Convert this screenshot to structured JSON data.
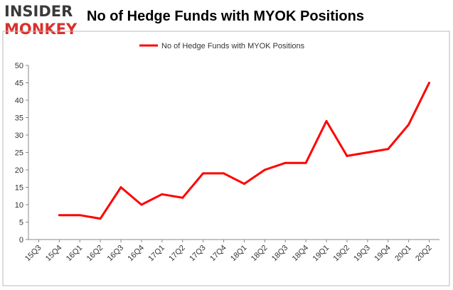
{
  "logo": {
    "line1": "INSIDER",
    "line2": "MONKEY"
  },
  "colors": {
    "series": "#ff0000",
    "logo_dark": "#3a3a3a",
    "logo_red": "#d9302c",
    "frame": "#b9b9b9"
  },
  "chart_data": {
    "type": "line",
    "title": "No of Hedge Funds with MYOK Positions",
    "xlabel": "",
    "ylabel": "",
    "ylim": [
      0,
      50
    ],
    "yticks": [
      0,
      5,
      10,
      15,
      20,
      25,
      30,
      35,
      40,
      45,
      50
    ],
    "grid": false,
    "legend_position": "top-center",
    "categories": [
      "15Q3",
      "15Q4",
      "16Q1",
      "16Q2",
      "16Q3",
      "16Q4",
      "17Q1",
      "17Q2",
      "17Q3",
      "17Q4",
      "18Q1",
      "18Q2",
      "18Q3",
      "18Q4",
      "19Q1",
      "19Q2",
      "19Q3",
      "19Q4",
      "20Q1",
      "20Q2"
    ],
    "series": [
      {
        "name": "No of Hedge Funds with MYOK Positions",
        "values": [
          null,
          7,
          7,
          6,
          15,
          10,
          13,
          12,
          19,
          19,
          16,
          20,
          22,
          22,
          34,
          24,
          25,
          26,
          33,
          45
        ]
      }
    ]
  }
}
